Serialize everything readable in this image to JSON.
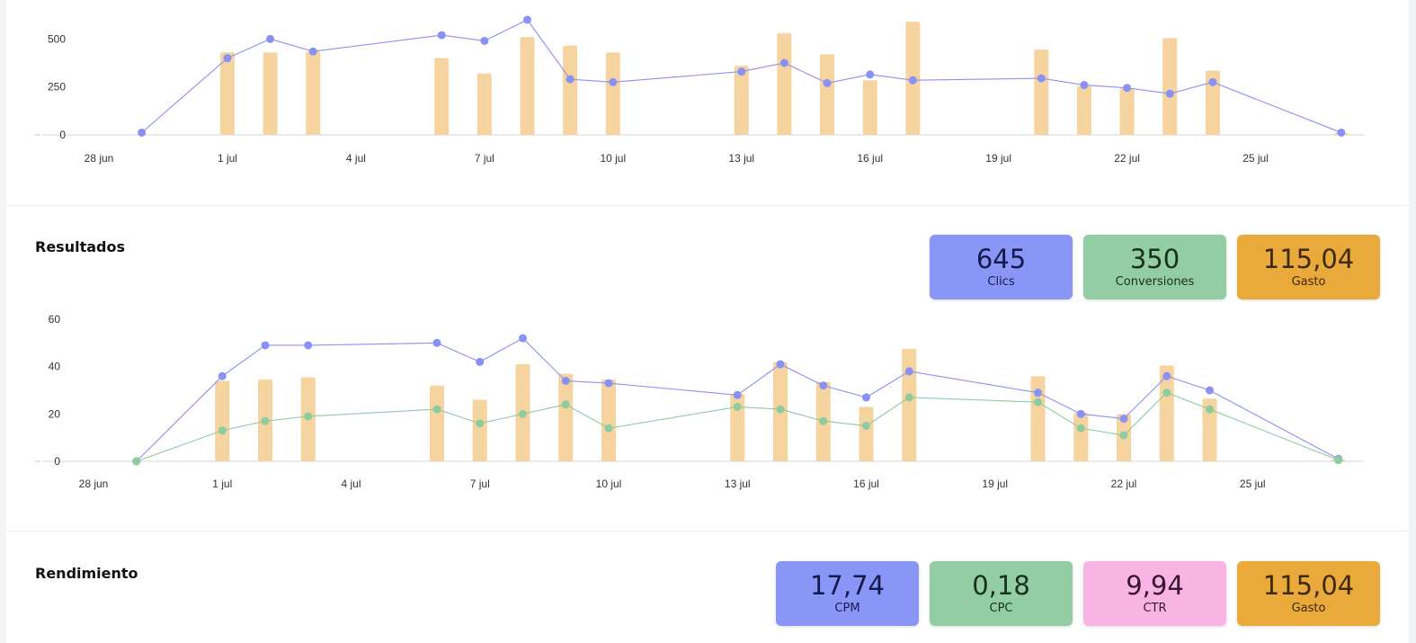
{
  "colors": {
    "bar": "#f5d49f",
    "line_blue": "#8a91f5",
    "line_green": "#8fcba0",
    "card_blue": "#8a96f6",
    "card_green": "#93cda3",
    "card_pink": "#f9b4e6",
    "card_orange": "#e9a93b"
  },
  "results": {
    "title": "Resultados",
    "cards": [
      {
        "value": "645",
        "label": "Clics",
        "color": "#8a96f6",
        "text_color": "#141a4a"
      },
      {
        "value": "350",
        "label": "Conversiones",
        "color": "#93cda3",
        "text_color": "#17311f"
      },
      {
        "value": "115,04",
        "label": "Gasto",
        "color": "#e9a93b",
        "text_color": "#3d2a08"
      }
    ]
  },
  "performance": {
    "title": "Rendimiento",
    "cards": [
      {
        "value": "17,74",
        "label": "CPM",
        "color": "#8a96f6",
        "text_color": "#141a4a"
      },
      {
        "value": "0,18",
        "label": "CPC",
        "color": "#93cda3",
        "text_color": "#17311f"
      },
      {
        "value": "9,94",
        "label": "CTR",
        "color": "#f9b4e6",
        "text_color": "#3a1430"
      },
      {
        "value": "115,04",
        "label": "Gasto",
        "color": "#e9a93b",
        "text_color": "#3d2a08"
      }
    ]
  },
  "chart_data": [
    {
      "type": "bar",
      "x_ticks": [
        "28 jun",
        "1 jul",
        "4 jul",
        "7 jul",
        "10 jul",
        "13 jul",
        "16 jul",
        "19 jul",
        "22 jul",
        "25 jul"
      ],
      "y_ticks": [
        "0",
        "250",
        "500"
      ],
      "ylim": [
        0,
        600
      ],
      "x_start": "28 jun",
      "bars": [
        {
          "date": "1 jul",
          "value": 430
        },
        {
          "date": "2 jul",
          "value": 430
        },
        {
          "date": "3 jul",
          "value": 435
        },
        {
          "date": "6 jul",
          "value": 400
        },
        {
          "date": "7 jul",
          "value": 320
        },
        {
          "date": "8 jul",
          "value": 510
        },
        {
          "date": "9 jul",
          "value": 465
        },
        {
          "date": "10 jul",
          "value": 430
        },
        {
          "date": "13 jul",
          "value": 360
        },
        {
          "date": "14 jul",
          "value": 530
        },
        {
          "date": "15 jul",
          "value": 420
        },
        {
          "date": "16 jul",
          "value": 285
        },
        {
          "date": "17 jul",
          "value": 590
        },
        {
          "date": "20 jul",
          "value": 445
        },
        {
          "date": "21 jul",
          "value": 255
        },
        {
          "date": "22 jul",
          "value": 245
        },
        {
          "date": "23 jul",
          "value": 505
        },
        {
          "date": "24 jul",
          "value": 335
        },
        {
          "date": "27 jul",
          "value": 10
        }
      ],
      "series": [
        {
          "points": [
            {
              "date": "29 jun",
              "value": 12
            },
            {
              "date": "1 jul",
              "value": 400
            },
            {
              "date": "2 jul",
              "value": 500
            },
            {
              "date": "3 jul",
              "value": 435
            },
            {
              "date": "6 jul",
              "value": 520
            },
            {
              "date": "7 jul",
              "value": 490
            },
            {
              "date": "8 jul",
              "value": 600
            },
            {
              "date": "9 jul",
              "value": 290
            },
            {
              "date": "10 jul",
              "value": 275
            },
            {
              "date": "13 jul",
              "value": 330
            },
            {
              "date": "14 jul",
              "value": 375
            },
            {
              "date": "15 jul",
              "value": 270
            },
            {
              "date": "16 jul",
              "value": 315
            },
            {
              "date": "17 jul",
              "value": 285
            },
            {
              "date": "20 jul",
              "value": 295
            },
            {
              "date": "21 jul",
              "value": 260
            },
            {
              "date": "22 jul",
              "value": 245
            },
            {
              "date": "23 jul",
              "value": 215
            },
            {
              "date": "24 jul",
              "value": 275
            },
            {
              "date": "27 jul",
              "value": 12
            }
          ]
        }
      ]
    },
    {
      "type": "bar",
      "x_ticks": [
        "28 jun",
        "1 jul",
        "4 jul",
        "7 jul",
        "10 jul",
        "13 jul",
        "16 jul",
        "19 jul",
        "22 jul",
        "25 jul"
      ],
      "y_ticks": [
        "0",
        "20",
        "40",
        "60"
      ],
      "ylim": [
        0,
        60
      ],
      "x_start": "28 jun",
      "bars": [
        {
          "date": "1 jul",
          "value": 34
        },
        {
          "date": "2 jul",
          "value": 34.5
        },
        {
          "date": "3 jul",
          "value": 35.5
        },
        {
          "date": "6 jul",
          "value": 32
        },
        {
          "date": "7 jul",
          "value": 26
        },
        {
          "date": "8 jul",
          "value": 41
        },
        {
          "date": "9 jul",
          "value": 37
        },
        {
          "date": "10 jul",
          "value": 34.5
        },
        {
          "date": "13 jul",
          "value": 28.5
        },
        {
          "date": "14 jul",
          "value": 42
        },
        {
          "date": "15 jul",
          "value": 33.5
        },
        {
          "date": "16 jul",
          "value": 23
        },
        {
          "date": "17 jul",
          "value": 47.5
        },
        {
          "date": "20 jul",
          "value": 36
        },
        {
          "date": "21 jul",
          "value": 20.5
        },
        {
          "date": "22 jul",
          "value": 20
        },
        {
          "date": "23 jul",
          "value": 40.5
        },
        {
          "date": "24 jul",
          "value": 26.5
        },
        {
          "date": "27 jul",
          "value": 0.8
        }
      ],
      "series": [
        {
          "points": [
            {
              "date": "29 jun",
              "value": 0
            },
            {
              "date": "1 jul",
              "value": 36
            },
            {
              "date": "2 jul",
              "value": 49
            },
            {
              "date": "3 jul",
              "value": 49
            },
            {
              "date": "6 jul",
              "value": 50
            },
            {
              "date": "7 jul",
              "value": 42
            },
            {
              "date": "8 jul",
              "value": 52
            },
            {
              "date": "9 jul",
              "value": 34
            },
            {
              "date": "10 jul",
              "value": 33
            },
            {
              "date": "13 jul",
              "value": 28
            },
            {
              "date": "14 jul",
              "value": 41
            },
            {
              "date": "15 jul",
              "value": 32
            },
            {
              "date": "16 jul",
              "value": 27
            },
            {
              "date": "17 jul",
              "value": 38
            },
            {
              "date": "20 jul",
              "value": 29
            },
            {
              "date": "21 jul",
              "value": 20
            },
            {
              "date": "22 jul",
              "value": 18
            },
            {
              "date": "23 jul",
              "value": 36
            },
            {
              "date": "24 jul",
              "value": 30
            },
            {
              "date": "27 jul",
              "value": 1
            }
          ]
        },
        {
          "points": [
            {
              "date": "29 jun",
              "value": 0
            },
            {
              "date": "1 jul",
              "value": 13
            },
            {
              "date": "2 jul",
              "value": 17
            },
            {
              "date": "3 jul",
              "value": 19
            },
            {
              "date": "6 jul",
              "value": 22
            },
            {
              "date": "7 jul",
              "value": 16
            },
            {
              "date": "8 jul",
              "value": 20
            },
            {
              "date": "9 jul",
              "value": 24
            },
            {
              "date": "10 jul",
              "value": 14
            },
            {
              "date": "13 jul",
              "value": 23
            },
            {
              "date": "14 jul",
              "value": 22
            },
            {
              "date": "15 jul",
              "value": 17
            },
            {
              "date": "16 jul",
              "value": 15
            },
            {
              "date": "17 jul",
              "value": 27
            },
            {
              "date": "20 jul",
              "value": 25
            },
            {
              "date": "21 jul",
              "value": 14
            },
            {
              "date": "22 jul",
              "value": 11
            },
            {
              "date": "23 jul",
              "value": 29
            },
            {
              "date": "24 jul",
              "value": 22
            },
            {
              "date": "27 jul",
              "value": 0.5
            }
          ]
        }
      ]
    }
  ]
}
